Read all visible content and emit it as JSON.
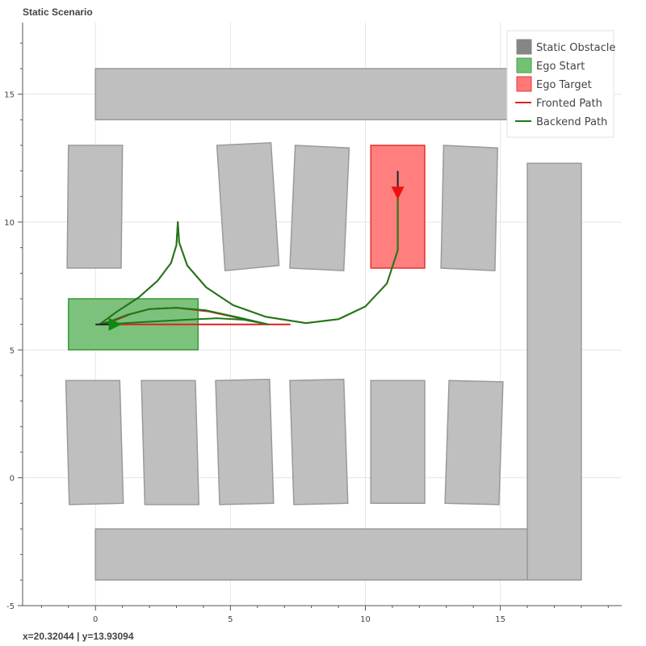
{
  "chart_data": {
    "type": "scatter",
    "title": "Static Scenario",
    "xlabel": "",
    "ylabel": "",
    "xlim": [
      -2.7,
      19.5
    ],
    "ylim": [
      -5,
      17.8
    ],
    "xticks": [
      0,
      5,
      10,
      15
    ],
    "yticks": [
      -5,
      0,
      5,
      10,
      15
    ],
    "grid": true,
    "legend_position": "top-right",
    "legend": [
      {
        "label": "Static Obstacle",
        "kind": "patch",
        "fill": "#808080",
        "stroke": "#808080"
      },
      {
        "label": "Ego Start",
        "kind": "patch",
        "fill": "#6cbf6c",
        "stroke": "#3a9a3a"
      },
      {
        "label": "Ego Target",
        "kind": "patch",
        "fill": "#ff7070",
        "stroke": "#e03030"
      },
      {
        "label": "Fronted Path",
        "kind": "line",
        "stroke": "#e02020"
      },
      {
        "label": "Backend Path",
        "kind": "line",
        "stroke": "#1a7a1a"
      }
    ],
    "colors": {
      "obstacle_fill": "#bfbfbf",
      "obstacle_stroke": "#9a9a9a",
      "start_fill": "#7cc27c",
      "start_stroke": "#3a9a3a",
      "target_fill": "#ff7f7f",
      "target_stroke": "#e03030",
      "fronted": "#e02020",
      "backend": "#1a7a1a",
      "start_marker": "#118811",
      "target_marker": "#ee1111"
    },
    "obstacles": [
      [
        [
          0,
          16
        ],
        [
          16,
          16
        ],
        [
          16,
          14
        ],
        [
          0,
          14
        ]
      ],
      [
        [
          16,
          12.3
        ],
        [
          18,
          12.3
        ],
        [
          18,
          -4
        ],
        [
          16,
          -4
        ]
      ],
      [
        [
          0,
          -2
        ],
        [
          16,
          -2
        ],
        [
          16,
          -4
        ],
        [
          0,
          -4
        ]
      ],
      [
        [
          -1,
          13
        ],
        [
          1,
          13
        ],
        [
          0.95,
          8.2
        ],
        [
          -1.05,
          8.2
        ]
      ],
      [
        [
          4.5,
          13
        ],
        [
          6.5,
          13.1
        ],
        [
          6.8,
          8.3
        ],
        [
          4.8,
          8.1
        ]
      ],
      [
        [
          7.4,
          13
        ],
        [
          9.4,
          12.9
        ],
        [
          9.2,
          8.1
        ],
        [
          7.2,
          8.2
        ]
      ],
      [
        [
          12.9,
          13
        ],
        [
          14.9,
          12.9
        ],
        [
          14.8,
          8.1
        ],
        [
          12.8,
          8.2
        ]
      ],
      [
        [
          -1.1,
          3.8
        ],
        [
          0.9,
          3.8
        ],
        [
          1.03,
          -1.0
        ],
        [
          -0.97,
          -1.05
        ]
      ],
      [
        [
          1.7,
          3.8
        ],
        [
          3.7,
          3.8
        ],
        [
          3.83,
          -1.05
        ],
        [
          1.83,
          -1.05
        ]
      ],
      [
        [
          4.45,
          3.8
        ],
        [
          6.45,
          3.85
        ],
        [
          6.6,
          -1.0
        ],
        [
          4.6,
          -1.05
        ]
      ],
      [
        [
          7.2,
          3.8
        ],
        [
          9.2,
          3.85
        ],
        [
          9.35,
          -1.0
        ],
        [
          7.35,
          -1.05
        ]
      ],
      [
        [
          10.2,
          3.8
        ],
        [
          12.2,
          3.8
        ],
        [
          12.2,
          -1.0
        ],
        [
          10.2,
          -1.0
        ]
      ],
      [
        [
          13.1,
          3.8
        ],
        [
          15.1,
          3.75
        ],
        [
          14.95,
          -1.05
        ],
        [
          12.95,
          -1.0
        ]
      ]
    ],
    "ego_start": [
      [
        -1,
        7
      ],
      [
        3.8,
        7
      ],
      [
        3.8,
        5
      ],
      [
        -1,
        5
      ]
    ],
    "ego_target": [
      [
        10.2,
        13
      ],
      [
        12.2,
        13
      ],
      [
        12.2,
        8.2
      ],
      [
        10.2,
        8.2
      ]
    ],
    "ego_start_arrow": {
      "x": 0.7,
      "y": 6,
      "direction": "right"
    },
    "ego_target_arrow": {
      "x": 11.2,
      "y": 11.1,
      "direction": "down"
    },
    "start_heading_line": [
      [
        0,
        6
      ],
      [
        0.7,
        6
      ]
    ],
    "target_heading_line": [
      [
        11.2,
        12
      ],
      [
        11.2,
        11.1
      ]
    ],
    "fronted_path": [
      [
        0.2,
        6
      ],
      [
        1.2,
        6
      ],
      [
        3,
        6
      ],
      [
        5,
        6
      ],
      [
        6.5,
        6
      ],
      [
        7.2,
        6
      ],
      [
        6.4,
        6
      ],
      [
        5.5,
        6.2
      ],
      [
        4.2,
        6.5
      ],
      [
        3,
        6.65
      ],
      [
        2,
        6.6
      ],
      [
        1.3,
        6.4
      ],
      [
        0.6,
        6.1
      ],
      [
        0.15,
        6
      ],
      [
        0.8,
        6.5
      ],
      [
        1.6,
        7.05
      ],
      [
        2.3,
        7.7
      ],
      [
        2.8,
        8.4
      ],
      [
        3.0,
        9.1
      ],
      [
        3.05,
        10.0
      ],
      [
        3.1,
        9.2
      ],
      [
        3.4,
        8.3
      ],
      [
        4.1,
        7.45
      ],
      [
        5.1,
        6.75
      ],
      [
        6.3,
        6.3
      ],
      [
        7.8,
        6.05
      ],
      [
        9.0,
        6.2
      ],
      [
        10.0,
        6.7
      ],
      [
        10.8,
        7.6
      ],
      [
        11.2,
        8.9
      ],
      [
        11.2,
        10.3
      ],
      [
        11.2,
        11.1
      ]
    ],
    "backend_path": [
      [
        0.15,
        6
      ],
      [
        0.7,
        6.02
      ],
      [
        1.6,
        6.08
      ],
      [
        3,
        6.16
      ],
      [
        4.5,
        6.24
      ],
      [
        5.5,
        6.18
      ],
      [
        6.4,
        6.0
      ],
      [
        5.4,
        6.25
      ],
      [
        4.1,
        6.55
      ],
      [
        3,
        6.65
      ],
      [
        2,
        6.6
      ],
      [
        1.2,
        6.38
      ],
      [
        0.55,
        6.12
      ],
      [
        0.15,
        6
      ],
      [
        0.8,
        6.5
      ],
      [
        1.6,
        7.05
      ],
      [
        2.3,
        7.7
      ],
      [
        2.8,
        8.4
      ],
      [
        3.0,
        9.1
      ],
      [
        3.05,
        10.0
      ],
      [
        3.1,
        9.2
      ],
      [
        3.4,
        8.3
      ],
      [
        4.1,
        7.45
      ],
      [
        5.1,
        6.75
      ],
      [
        6.3,
        6.3
      ],
      [
        7.8,
        6.05
      ],
      [
        9.0,
        6.2
      ],
      [
        10.0,
        6.7
      ],
      [
        10.8,
        7.6
      ],
      [
        11.2,
        8.9
      ],
      [
        11.2,
        10.3
      ],
      [
        11.2,
        11.1
      ]
    ]
  },
  "readout": {
    "x_text": "x=20.32044",
    "separator": " | ",
    "y_text": "y=13.93094"
  }
}
